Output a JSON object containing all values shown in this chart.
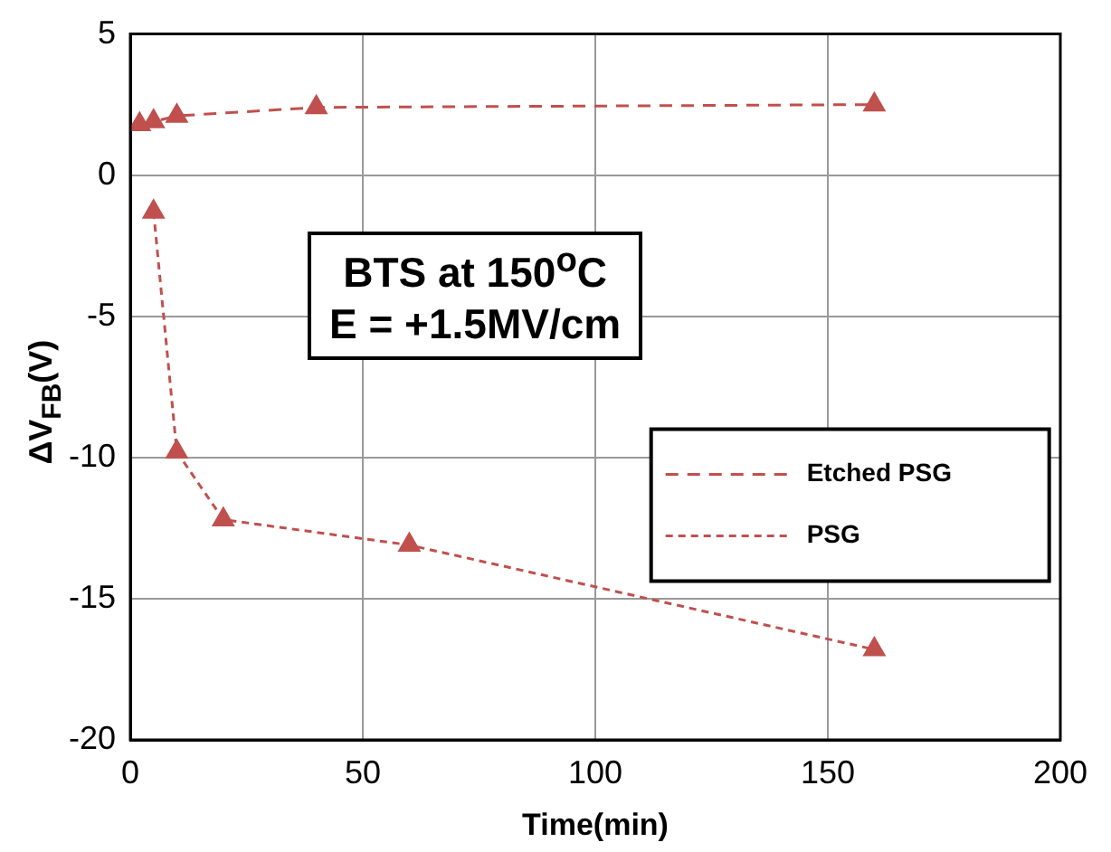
{
  "chart_data": {
    "type": "line",
    "xlabel": "Time(min)",
    "ylabel": "ΔV$_{FB}$(V)",
    "annotations": [
      "BTS at 150$^{o}$C\nE = +1.5MV/cm"
    ],
    "series": [
      {
        "name": "Etched PSG",
        "color": "#c0504d",
        "line_style": "dashed",
        "x": [
          2,
          5,
          10,
          40,
          160
        ],
        "values": [
          1.8,
          1.9,
          2.1,
          2.4,
          2.5
        ]
      },
      {
        "name": "PSG",
        "color": "#c0504d",
        "line_style": "dotted",
        "x": [
          5,
          10,
          20,
          60,
          160
        ],
        "values": [
          -1.3,
          -9.8,
          -12.2,
          -13.1,
          -16.8
        ]
      }
    ],
    "xlim": [
      0,
      200
    ],
    "xticks": [
      0,
      50,
      100,
      150,
      200
    ],
    "ylim": [
      -20,
      5
    ],
    "yticks": [
      -20,
      -15,
      -10,
      -5,
      0,
      5
    ],
    "grid": true,
    "legend": "right",
    "marker": "triangle"
  }
}
